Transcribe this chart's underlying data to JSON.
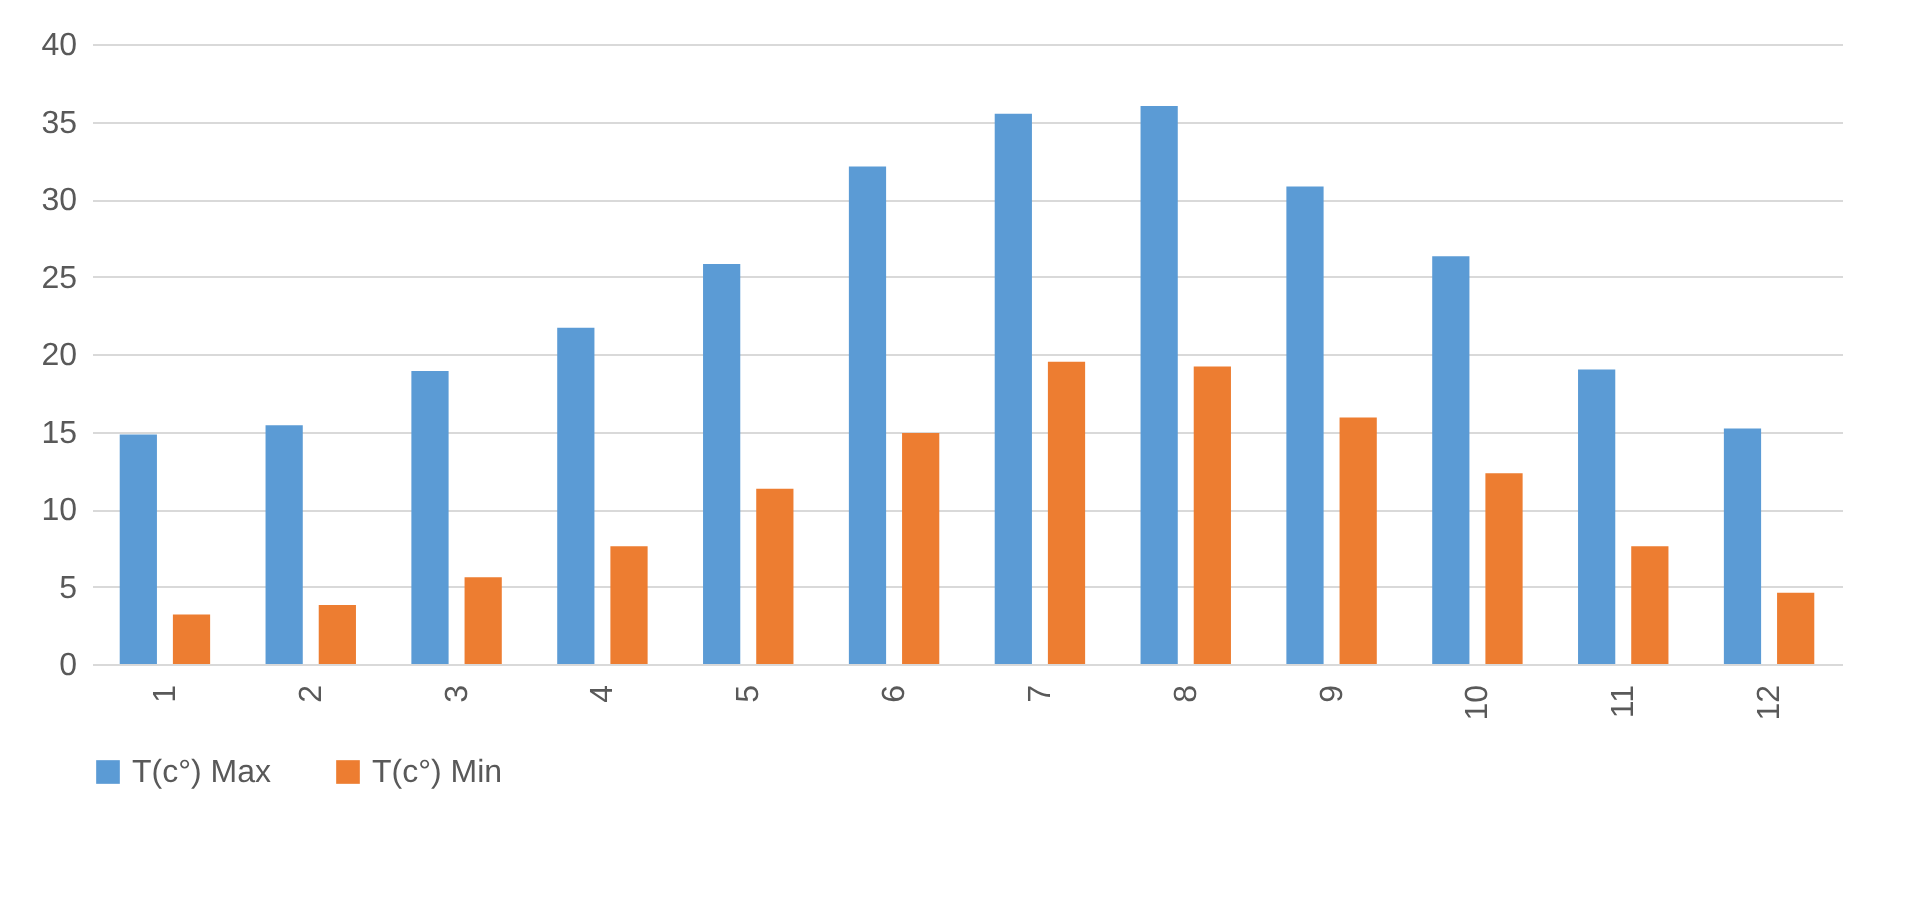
{
  "chart_data": {
    "type": "bar",
    "categories": [
      "1",
      "2",
      "3",
      "4",
      "5",
      "6",
      "7",
      "8",
      "9",
      "10",
      "11",
      "12"
    ],
    "series": [
      {
        "name": "T(c°) Max",
        "color": "#5b9bd5",
        "values": [
          14.8,
          15.4,
          18.9,
          21.7,
          25.8,
          32.1,
          35.5,
          36.0,
          30.8,
          26.3,
          19.0,
          15.2
        ]
      },
      {
        "name": "T(c°) Min",
        "color": "#ed7d31",
        "values": [
          3.2,
          3.8,
          5.6,
          7.6,
          11.3,
          14.9,
          19.5,
          19.2,
          15.9,
          12.3,
          7.6,
          4.6
        ]
      }
    ],
    "ylim": [
      0,
      40
    ],
    "yticks": [
      0,
      5,
      10,
      15,
      20,
      25,
      30,
      35,
      40
    ],
    "grid": "y",
    "legend": "bottom"
  }
}
